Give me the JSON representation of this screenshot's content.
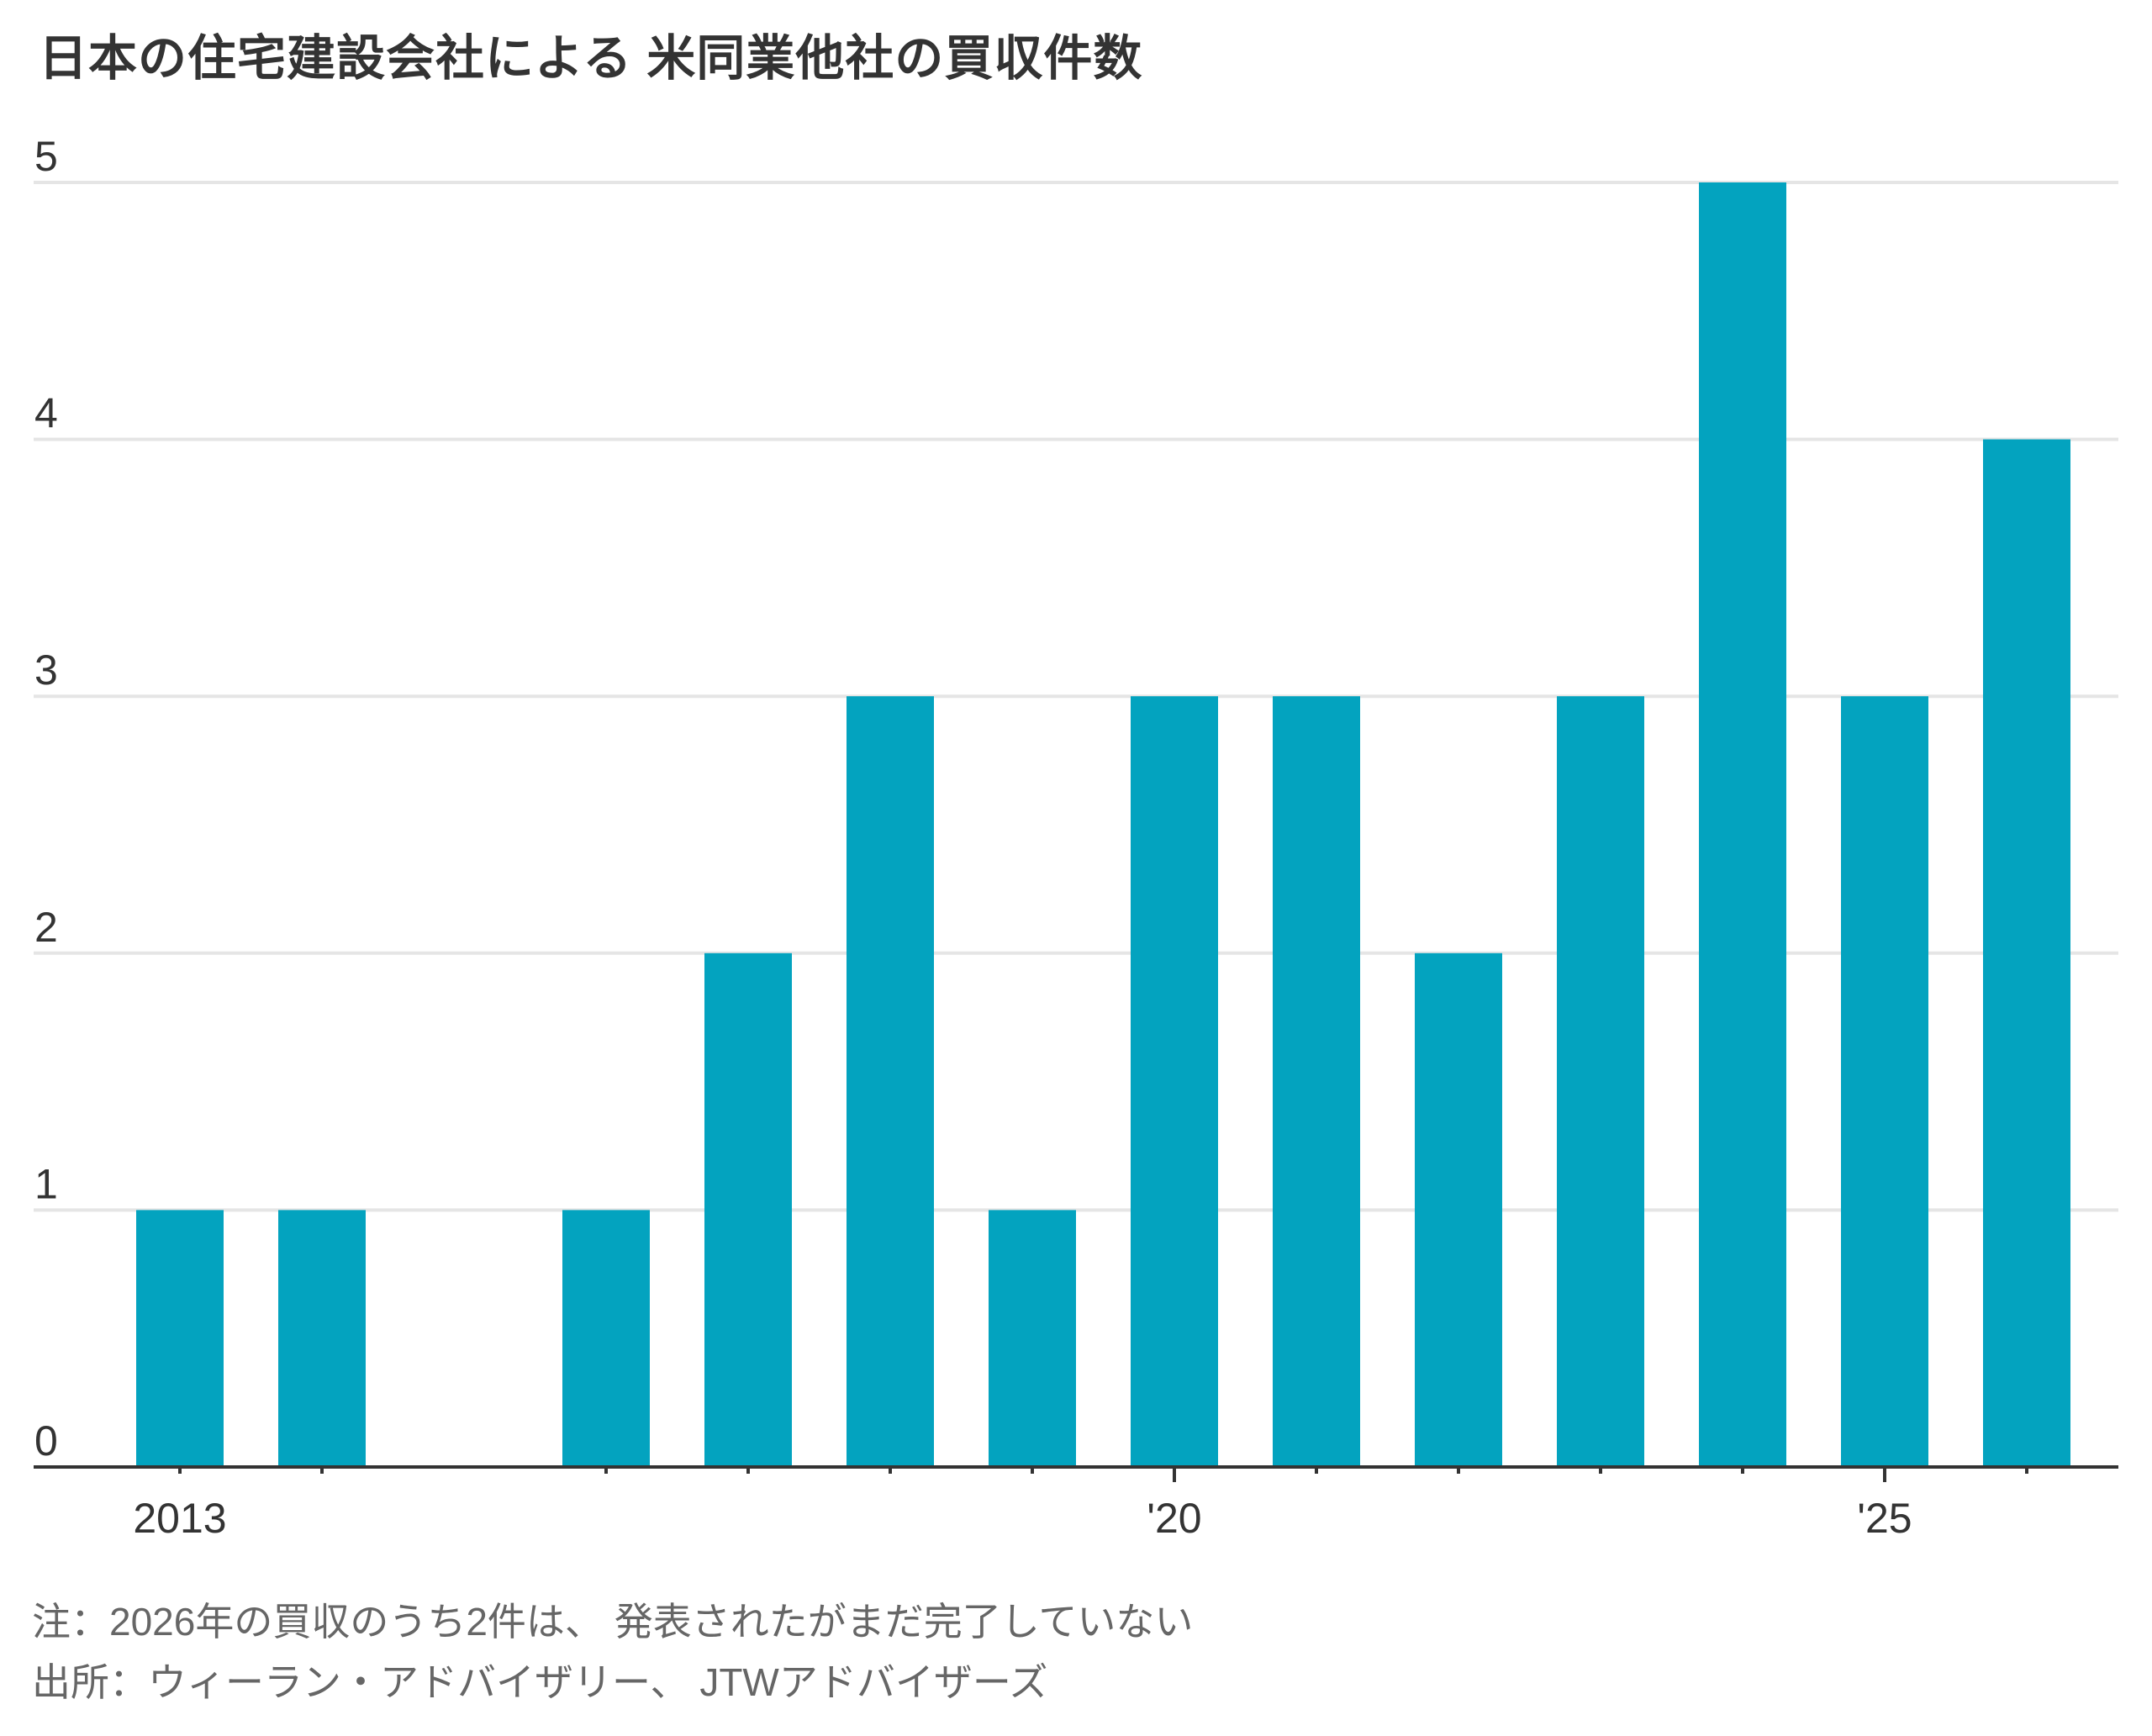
{
  "chart_data": {
    "type": "bar",
    "title": "日本の住宅建設会社による 米同業他社の買収件数",
    "xlabel": "",
    "ylabel": "",
    "categories": [
      2013,
      2014,
      2015,
      2016,
      2017,
      2018,
      2019,
      2020,
      2021,
      2022,
      2023,
      2024,
      2025,
      2026
    ],
    "values": [
      1,
      1,
      0,
      1,
      2,
      3,
      1,
      3,
      3,
      2,
      3,
      5,
      3,
      4
    ],
    "ylim": [
      0,
      5
    ],
    "yticks": [
      0,
      1,
      2,
      3,
      4,
      5
    ],
    "ytick_labels": [
      "0",
      "1",
      "2",
      "3",
      "4",
      "5"
    ],
    "xtick_labels": [
      {
        "year": 2013,
        "label": "2013"
      },
      {
        "year": 2020,
        "label": "'20"
      },
      {
        "year": 2025,
        "label": "'25"
      }
    ],
    "major_tick_years": [
      2020,
      2025
    ],
    "grid": true,
    "legend": "none",
    "bar_color": "#03A3BF",
    "grid_color": "#E5E5E5",
    "axis_color": "#333333"
  },
  "footnotes": {
    "note": "注：2026年の買収のうち2件は、 発表されたがまだ完了していない",
    "source": "出所：ウィーラン・アドバイザリー、 JTWアドバイザーズ"
  }
}
